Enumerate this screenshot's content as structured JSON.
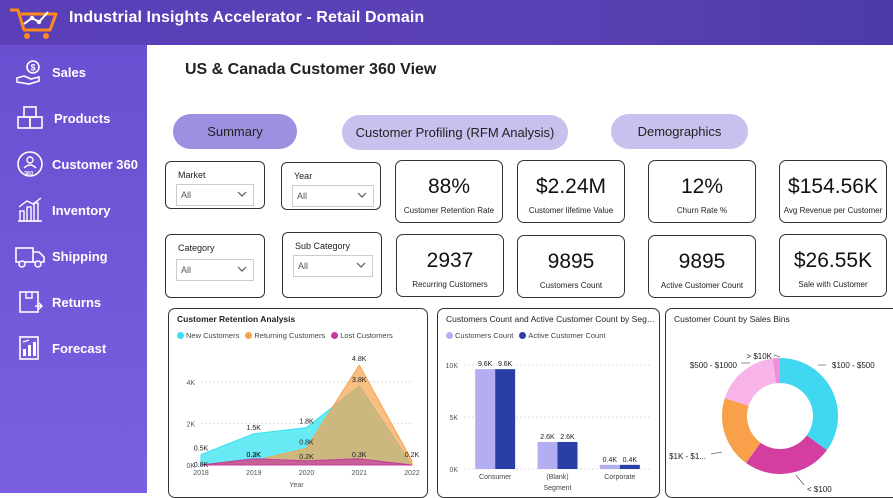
{
  "app": {
    "title": "Industrial Insights Accelerator - Retail Domain"
  },
  "page": {
    "title": "US & Canada Customer 360 View"
  },
  "sidebar": {
    "items": [
      {
        "label": "Sales",
        "icon": "money-hand-icon"
      },
      {
        "label": "Products",
        "icon": "boxes-icon"
      },
      {
        "label": "Customer 360",
        "icon": "customer-360-icon"
      },
      {
        "label": "Inventory",
        "icon": "inventory-chart-icon"
      },
      {
        "label": "Shipping",
        "icon": "truck-icon"
      },
      {
        "label": "Returns",
        "icon": "return-box-icon"
      },
      {
        "label": "Forecast",
        "icon": "forecast-icon"
      }
    ]
  },
  "tabs": {
    "summary": "Summary",
    "rfm": "Customer Profiling (RFM Analysis)",
    "demographics": "Demographics"
  },
  "filters": {
    "market": {
      "label": "Market",
      "value": "All"
    },
    "year": {
      "label": "Year",
      "value": "All"
    },
    "category": {
      "label": "Category",
      "value": "All"
    },
    "subcategory": {
      "label": "Sub Category",
      "value": "All"
    }
  },
  "kpis": {
    "retention": {
      "value": "88%",
      "label": "Customer Retention Rate"
    },
    "lifetime": {
      "value": "$2.24M",
      "label": "Customer lifetime Value"
    },
    "churn": {
      "value": "12%",
      "label": "Churn Rate %"
    },
    "avg_revenue": {
      "value": "$154.56K",
      "label": "Avg Revenue per Customer"
    },
    "recurring": {
      "value": "2937",
      "label": "Recurring Customers"
    },
    "customers": {
      "value": "9895",
      "label": "Customers Count"
    },
    "active": {
      "value": "9895",
      "label": "Active Customer Count"
    },
    "sale_with_customer": {
      "value": "$26.55K",
      "label": "Sale with Customer"
    }
  },
  "colors": {
    "accent": "#5b41b6",
    "new": "#35e3f0",
    "returning": "#f7a24b",
    "lost": "#c43aa0",
    "customers": "#b3aef2",
    "active": "#2a3fa6"
  },
  "chart_data": [
    {
      "type": "area",
      "title": "Customer Retention Analysis",
      "xlabel": "Year",
      "ylabel": "",
      "x": [
        "2018",
        "2019",
        "2020",
        "2021",
        "2022"
      ],
      "y_ticks": [
        "0K",
        "2K",
        "4K"
      ],
      "ylim": [
        0,
        5000
      ],
      "series": [
        {
          "name": "New Customers",
          "values": [
            500,
            1500,
            1800,
            3800,
            0
          ],
          "labels": [
            "0.5K",
            "1.5K",
            "1.8K",
            "3.8K",
            ""
          ]
        },
        {
          "name": "Returning Customers",
          "values": [
            0,
            200,
            800,
            4800,
            200
          ],
          "labels": [
            "",
            "0.2K",
            "0.8K",
            "4.8K",
            "0.2K"
          ]
        },
        {
          "name": "Lost Customers",
          "values": [
            0,
            300,
            200,
            300,
            0
          ],
          "labels": [
            "0.0K",
            "0.3K",
            "0.2K",
            "0.3K",
            ""
          ]
        }
      ]
    },
    {
      "type": "bar",
      "title": "Customers Count and Active Customer Count by Segment",
      "xlabel": "Segment",
      "ylabel": "",
      "categories": [
        "Consumer",
        "(Blank)",
        "Corporate"
      ],
      "y_ticks": [
        "0K",
        "5K",
        "10K"
      ],
      "ylim": [
        0,
        10000
      ],
      "series": [
        {
          "name": "Customers Count",
          "values": [
            9600,
            2600,
            400
          ],
          "labels": [
            "9.6K",
            "2.6K",
            "0.4K"
          ]
        },
        {
          "name": "Active Customer Count",
          "values": [
            9600,
            2600,
            400
          ],
          "labels": [
            "9.6K",
            "2.6K",
            "0.4K"
          ]
        }
      ]
    },
    {
      "type": "pie",
      "title": "Customer  Count by Sales Bins",
      "categories": [
        "$100 - $500",
        "< $100",
        "$1K - $1...",
        "$500 - $1000",
        "> $10K"
      ],
      "values": [
        35,
        25,
        20,
        18,
        2
      ],
      "colors": [
        "#3fd8f0",
        "#d43ea0",
        "#f8a04a",
        "#f8b4e8",
        "#ee8fd8"
      ]
    }
  ]
}
